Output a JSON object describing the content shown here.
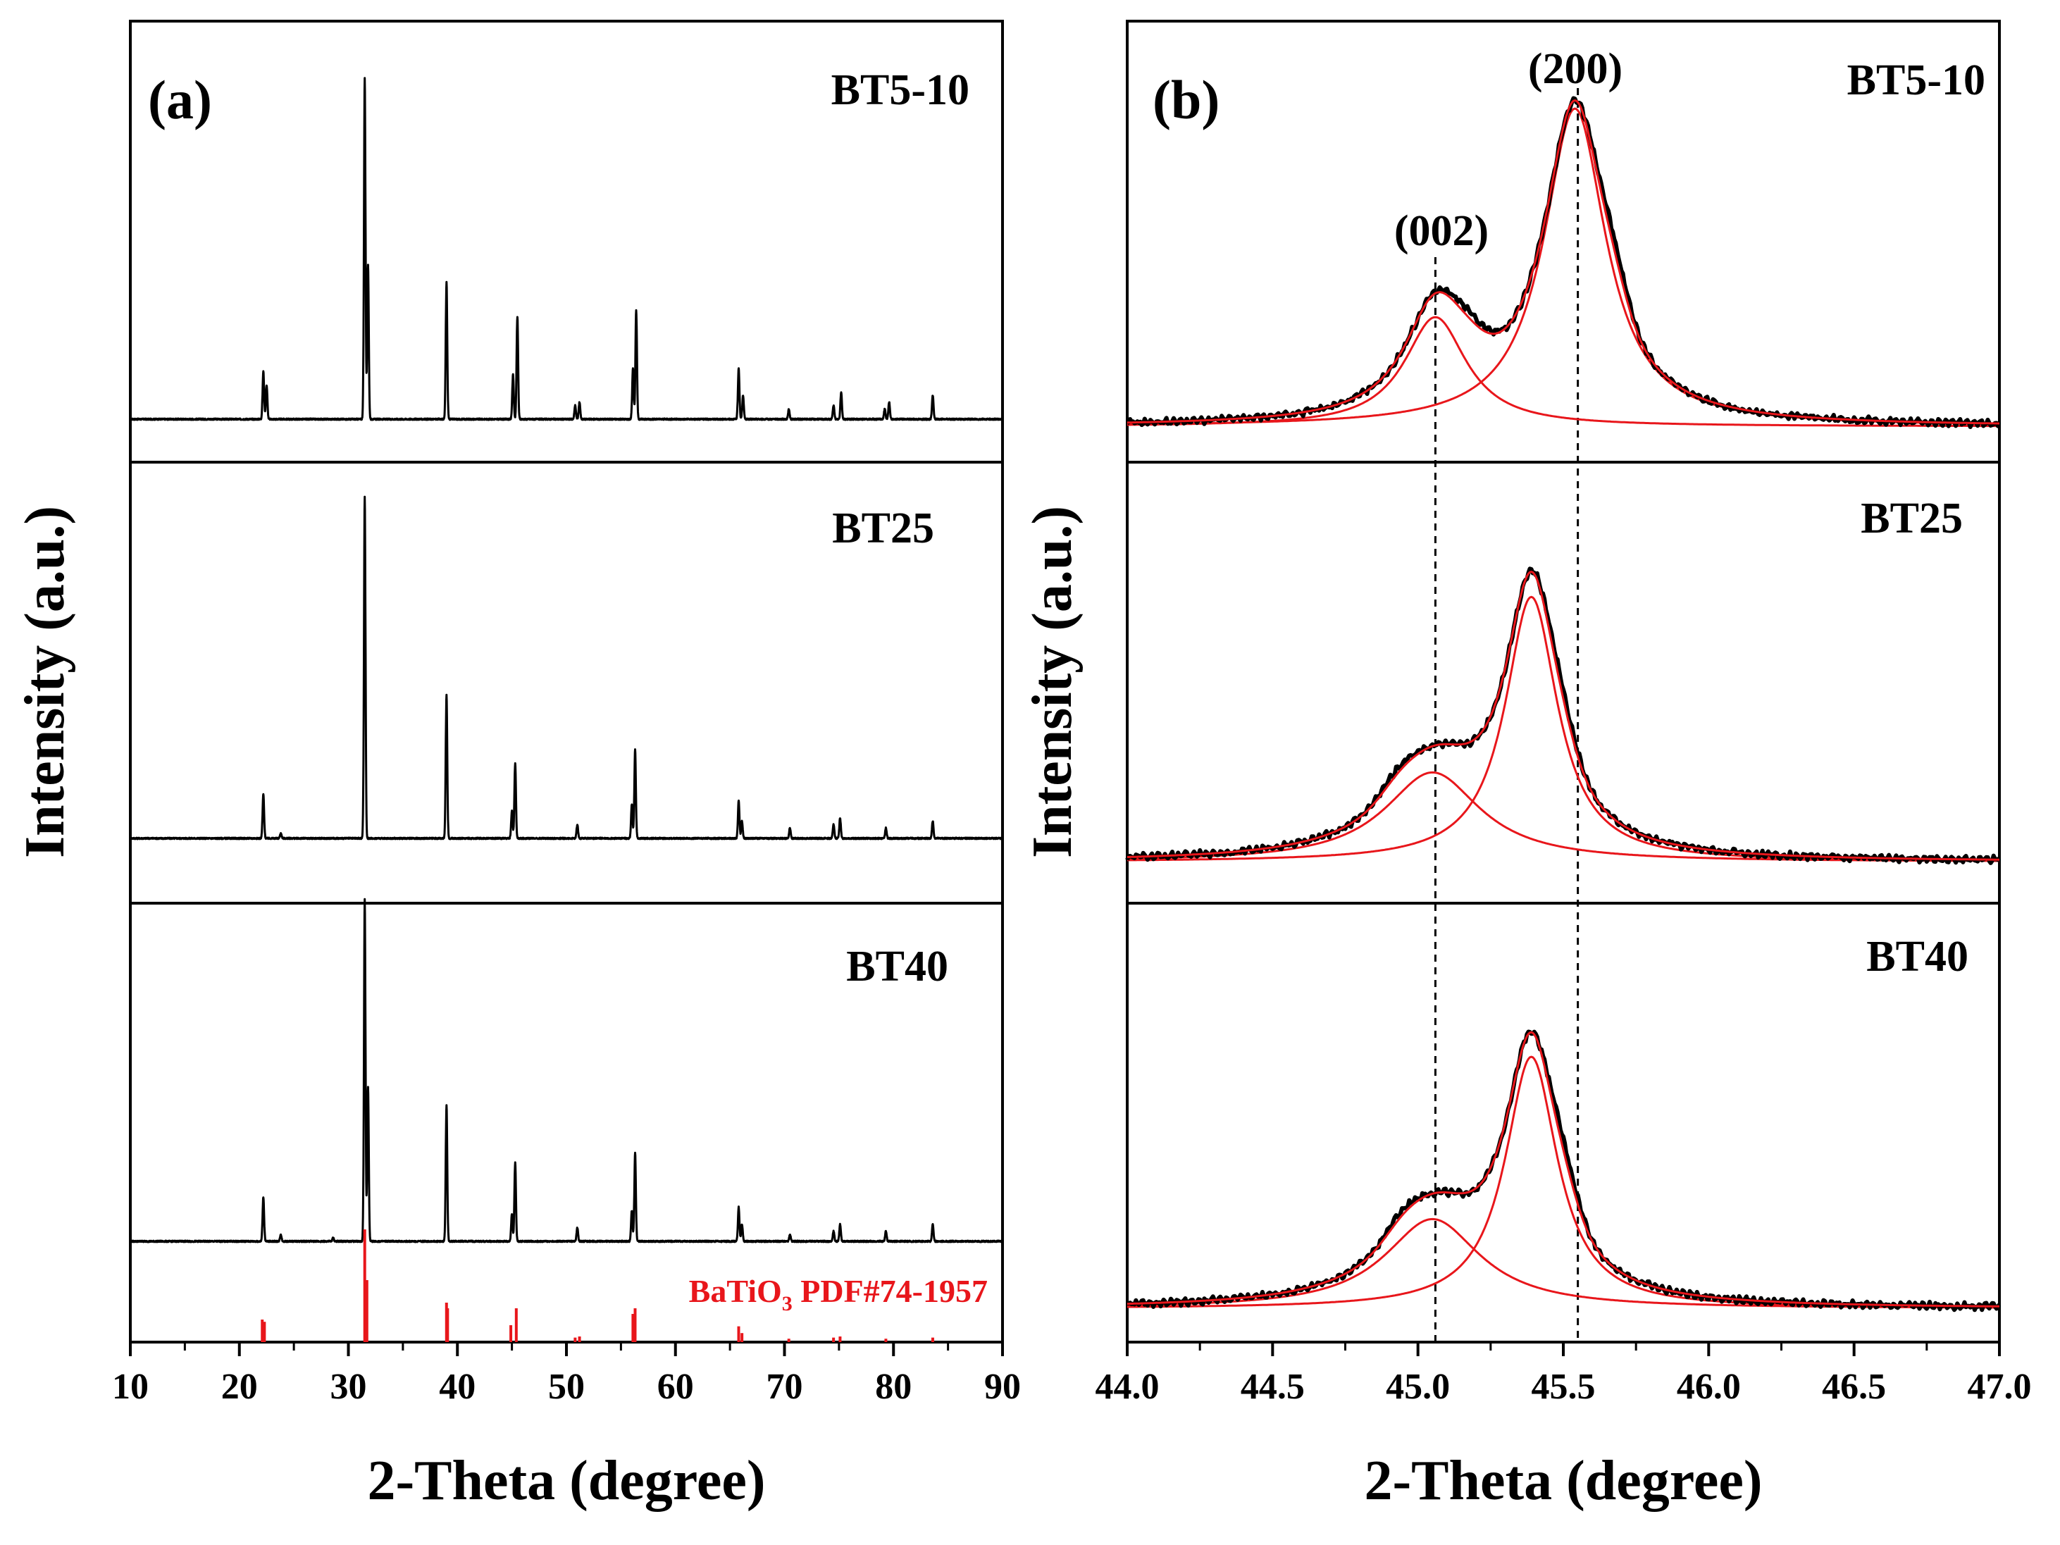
{
  "chart_data": [
    {
      "panel": "(a)",
      "type": "line",
      "xlabel": "2-Theta (degree)",
      "ylabel": "Intensity (a.u.)",
      "xlim": [
        10,
        90
      ],
      "xticks": [
        "10",
        "20",
        "30",
        "40",
        "50",
        "60",
        "70",
        "80",
        "90"
      ],
      "series": [
        {
          "name": "BT5-10",
          "peaks": [
            {
              "x": 22.2,
              "h": 0.14
            },
            {
              "x": 22.5,
              "h": 0.1
            },
            {
              "x": 31.5,
              "h": 1.0
            },
            {
              "x": 31.8,
              "h": 0.45
            },
            {
              "x": 39.0,
              "h": 0.4
            },
            {
              "x": 45.1,
              "h": 0.13
            },
            {
              "x": 45.5,
              "h": 0.3
            },
            {
              "x": 50.8,
              "h": 0.04
            },
            {
              "x": 51.2,
              "h": 0.05
            },
            {
              "x": 56.1,
              "h": 0.15
            },
            {
              "x": 56.4,
              "h": 0.32
            },
            {
              "x": 65.8,
              "h": 0.15
            },
            {
              "x": 66.2,
              "h": 0.07
            },
            {
              "x": 70.4,
              "h": 0.03
            },
            {
              "x": 74.5,
              "h": 0.04
            },
            {
              "x": 75.2,
              "h": 0.08
            },
            {
              "x": 79.2,
              "h": 0.03
            },
            {
              "x": 79.6,
              "h": 0.05
            },
            {
              "x": 83.6,
              "h": 0.07
            }
          ]
        },
        {
          "name": "BT25",
          "peaks": [
            {
              "x": 22.2,
              "h": 0.13
            },
            {
              "x": 23.8,
              "h": 0.015
            },
            {
              "x": 31.5,
              "h": 1.0
            },
            {
              "x": 39.0,
              "h": 0.42
            },
            {
              "x": 45.0,
              "h": 0.08
            },
            {
              "x": 45.3,
              "h": 0.22
            },
            {
              "x": 51.0,
              "h": 0.04
            },
            {
              "x": 56.0,
              "h": 0.1
            },
            {
              "x": 56.3,
              "h": 0.26
            },
            {
              "x": 65.8,
              "h": 0.11
            },
            {
              "x": 66.1,
              "h": 0.05
            },
            {
              "x": 70.5,
              "h": 0.03
            },
            {
              "x": 74.5,
              "h": 0.04
            },
            {
              "x": 75.1,
              "h": 0.06
            },
            {
              "x": 79.3,
              "h": 0.03
            },
            {
              "x": 83.6,
              "h": 0.05
            }
          ]
        },
        {
          "name": "BT40",
          "peaks": [
            {
              "x": 22.2,
              "h": 0.13
            },
            {
              "x": 23.8,
              "h": 0.02
            },
            {
              "x": 28.6,
              "h": 0.01
            },
            {
              "x": 31.5,
              "h": 1.0
            },
            {
              "x": 31.8,
              "h": 0.45
            },
            {
              "x": 39.0,
              "h": 0.4
            },
            {
              "x": 45.0,
              "h": 0.08
            },
            {
              "x": 45.3,
              "h": 0.23
            },
            {
              "x": 51.0,
              "h": 0.04
            },
            {
              "x": 56.0,
              "h": 0.09
            },
            {
              "x": 56.3,
              "h": 0.26
            },
            {
              "x": 65.8,
              "h": 0.1
            },
            {
              "x": 66.1,
              "h": 0.05
            },
            {
              "x": 70.5,
              "h": 0.02
            },
            {
              "x": 74.5,
              "h": 0.03
            },
            {
              "x": 75.1,
              "h": 0.05
            },
            {
              "x": 79.3,
              "h": 0.03
            },
            {
              "x": 83.6,
              "h": 0.05
            }
          ]
        }
      ],
      "reference": {
        "label_main": "BaTiO",
        "label_sub": "3",
        "label_tail": " PDF#74-1957",
        "color": "#e8161b",
        "lines": [
          {
            "x": 22.1,
            "h": 0.2
          },
          {
            "x": 22.3,
            "h": 0.18
          },
          {
            "x": 31.5,
            "h": 1.0
          },
          {
            "x": 31.7,
            "h": 0.55
          },
          {
            "x": 39.0,
            "h": 0.35
          },
          {
            "x": 39.1,
            "h": 0.3
          },
          {
            "x": 44.9,
            "h": 0.15
          },
          {
            "x": 45.4,
            "h": 0.3
          },
          {
            "x": 50.8,
            "h": 0.04
          },
          {
            "x": 51.2,
            "h": 0.05
          },
          {
            "x": 56.1,
            "h": 0.25
          },
          {
            "x": 56.3,
            "h": 0.3
          },
          {
            "x": 65.8,
            "h": 0.14
          },
          {
            "x": 66.1,
            "h": 0.08
          },
          {
            "x": 70.4,
            "h": 0.03
          },
          {
            "x": 74.5,
            "h": 0.04
          },
          {
            "x": 75.1,
            "h": 0.05
          },
          {
            "x": 79.3,
            "h": 0.03
          },
          {
            "x": 83.6,
            "h": 0.04
          }
        ]
      }
    },
    {
      "panel": "(b)",
      "type": "line",
      "xlabel": "2-Theta (degree)",
      "ylabel": "Intensity (a.u.)",
      "xlim": [
        44.0,
        47.0
      ],
      "xticks": [
        "44.0",
        "44.5",
        "45.0",
        "45.5",
        "46.0",
        "46.5",
        "47.0"
      ],
      "annotations": [
        {
          "text": "(002)",
          "x": 45.06
        },
        {
          "text": "(200)",
          "x": 45.55
        }
      ],
      "guide_lines_x": [
        45.06,
        45.55
      ],
      "fit_color": "#e8161b",
      "series": [
        {
          "name": "BT5-10",
          "peak_002": {
            "x": 45.06,
            "h": 0.33,
            "w": 0.13
          },
          "peak_200": {
            "x": 45.54,
            "h": 0.96,
            "w": 0.13
          },
          "shoulders": [
            {
              "x": 45.17,
              "h": 0.17,
              "w": 0.06
            },
            {
              "x": 45.67,
              "h": 0.28,
              "w": 0.05
            }
          ],
          "baseline": 0.01
        },
        {
          "name": "BT25",
          "peak_002": {
            "x": 45.05,
            "h": 0.27,
            "w": 0.2
          },
          "peak_200": {
            "x": 45.39,
            "h": 0.8,
            "w": 0.11
          },
          "shoulders": [
            {
              "x": 44.93,
              "h": 0.12,
              "w": 0.06
            },
            {
              "x": 45.49,
              "h": 0.23,
              "w": 0.05
            }
          ],
          "baseline": 0.01
        },
        {
          "name": "BT40",
          "peak_002": {
            "x": 45.05,
            "h": 0.27,
            "w": 0.2
          },
          "peak_200": {
            "x": 45.39,
            "h": 0.76,
            "w": 0.11
          },
          "shoulders": [
            {
              "x": 44.94,
              "h": 0.12,
              "w": 0.06
            },
            {
              "x": 45.5,
              "h": 0.26,
              "w": 0.05
            }
          ],
          "baseline": 0.01
        }
      ]
    }
  ]
}
